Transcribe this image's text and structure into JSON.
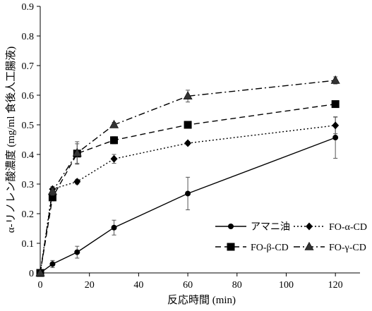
{
  "chart_data": {
    "type": "line",
    "title": "",
    "xlabel": "反応時間 (min)",
    "ylabel": "α-リノレン酸濃度 (mg/ml 食後人工腸液)",
    "xlim": [
      0,
      130
    ],
    "ylim": [
      0,
      0.9
    ],
    "x_ticks": [
      0,
      20,
      40,
      60,
      80,
      100,
      120
    ],
    "y_ticks": [
      0,
      0.1,
      0.2,
      0.3,
      0.4,
      0.5,
      0.6,
      0.7,
      0.8,
      0.9
    ],
    "x_tick_labels": [
      "0",
      "20",
      "40",
      "60",
      "80",
      "100",
      "120"
    ],
    "y_tick_labels": [
      "0",
      "0.1",
      "0.2",
      "0.3",
      "0.4",
      "0.5",
      "0.6",
      "0.7",
      "0.8",
      "0.9"
    ],
    "x": [
      0,
      5,
      15,
      30,
      60,
      120
    ],
    "grid": false,
    "legend_position": "lower-right",
    "series": [
      {
        "name": "アマニ油",
        "marker": "circle",
        "dash": "solid",
        "color": "#000000",
        "values": [
          0,
          0.03,
          0.07,
          0.153,
          0.268,
          0.457
        ],
        "errors": [
          0,
          0.012,
          0.02,
          0.025,
          0.055,
          0.07
        ]
      },
      {
        "name": "FO-α-CD",
        "marker": "diamond",
        "dash": "dotted",
        "color": "#000000",
        "values": [
          0,
          0.283,
          0.308,
          0.385,
          0.438,
          0.498
        ],
        "errors": [
          0,
          0.008,
          0.008,
          0.015,
          0.006,
          0.028
        ]
      },
      {
        "name": "FO-β-CD",
        "marker": "square",
        "dash": "dashed",
        "color": "#000000",
        "values": [
          0,
          0.255,
          0.403,
          0.448,
          0.5,
          0.57
        ],
        "errors": [
          0,
          0.012,
          0.033,
          0.012,
          0.005,
          0.01
        ]
      },
      {
        "name": "FO-γ-CD",
        "marker": "triangle",
        "dash": "dashdot",
        "color": "#000000",
        "values": [
          0,
          0.275,
          0.405,
          0.5,
          0.597,
          0.65
        ],
        "errors": [
          0,
          0.012,
          0.038,
          0.008,
          0.02,
          0.012
        ]
      }
    ]
  }
}
